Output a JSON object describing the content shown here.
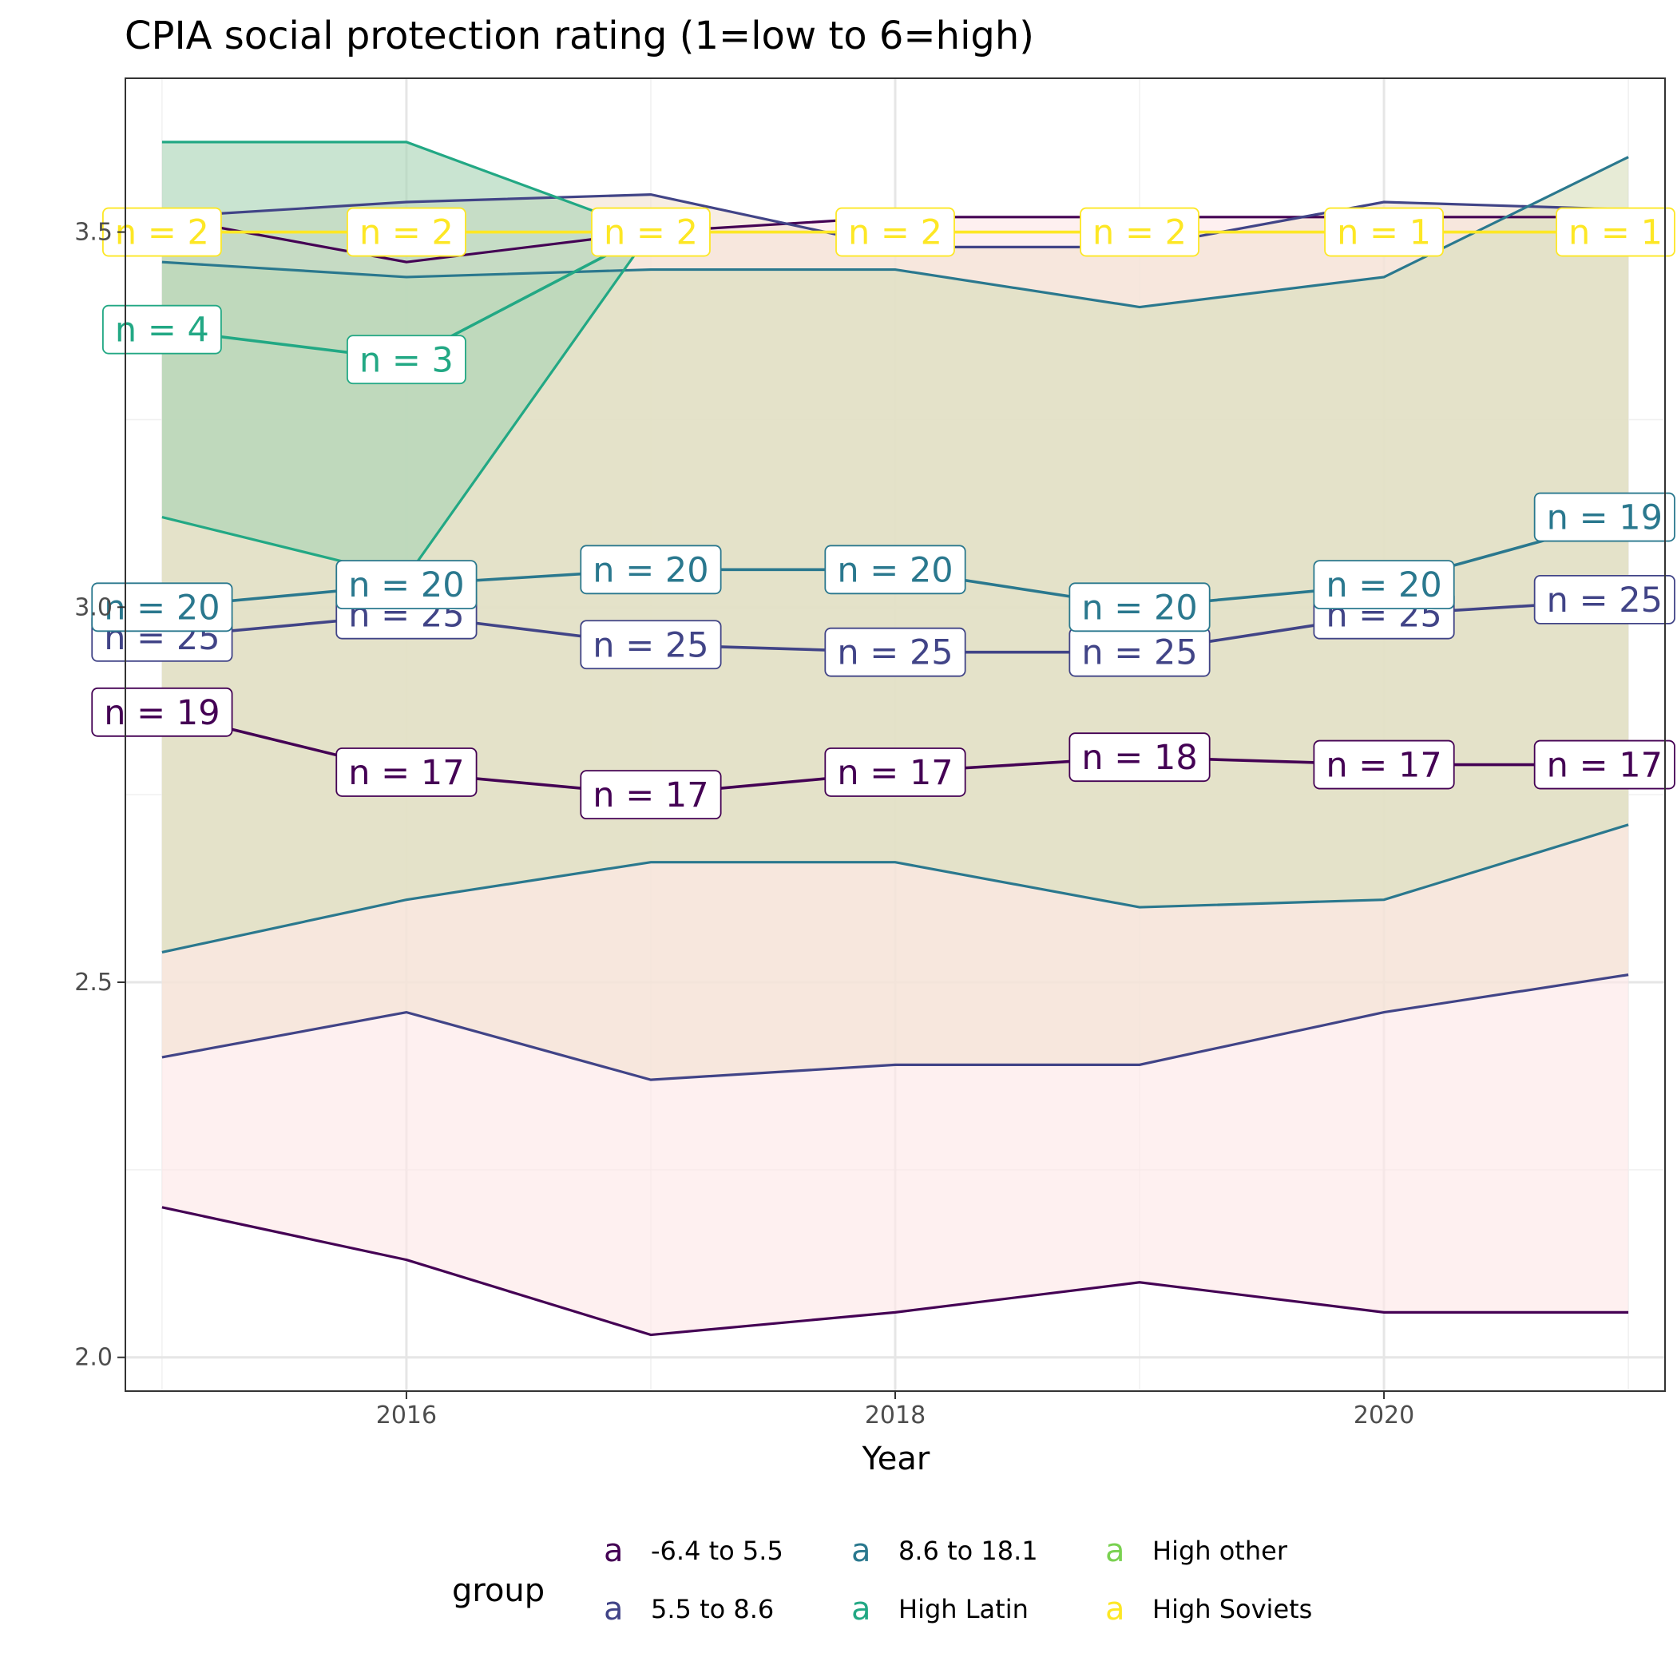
{
  "chart_data": {
    "type": "line",
    "title": "CPIA social protection rating (1=low to 6=high)",
    "xlabel": "Year",
    "ylabel": "",
    "x": [
      2015,
      2016,
      2017,
      2018,
      2019,
      2020,
      2021
    ],
    "xlim": [
      2014.85,
      2021.15
    ],
    "ylim": [
      1.955,
      3.705
    ],
    "x_ticks": [
      2016,
      2018,
      2020
    ],
    "x_tick_labels": [
      "2016",
      "2018",
      "2020"
    ],
    "y_ticks": [
      2.0,
      2.5,
      3.0,
      3.5
    ],
    "y_tick_labels": [
      "2.0",
      "2.5",
      "3.0",
      "3.5"
    ],
    "grid": true,
    "legend": {
      "title": "group",
      "position": "bottom",
      "key_glyph": "a",
      "entries": [
        {
          "name": "-6.4 to 5.5",
          "color": "#440154"
        },
        {
          "name": "5.5 to 8.6",
          "color": "#414487"
        },
        {
          "name": "8.6 to 18.1",
          "color": "#2A788E"
        },
        {
          "name": "High Latin",
          "color": "#22A884"
        },
        {
          "name": "High other",
          "color": "#7AD151"
        },
        {
          "name": "High Soviets",
          "color": "#FDE725"
        }
      ]
    },
    "series": [
      {
        "name": "-6.4 to 5.5",
        "color": "#440154",
        "band_fill": "#FDE7E7",
        "mean": [
          2.86,
          2.78,
          2.75,
          2.78,
          2.8,
          2.79,
          2.79
        ],
        "lower": [
          2.2,
          2.13,
          2.03,
          2.06,
          2.1,
          2.06,
          2.06
        ],
        "upper": [
          3.52,
          3.46,
          3.5,
          3.52,
          3.52,
          3.52,
          3.52
        ],
        "n_labels": [
          "n = 19",
          "n = 17",
          "n = 17",
          "n = 17",
          "n = 18",
          "n = 17",
          "n = 17"
        ]
      },
      {
        "name": "5.5 to 8.6",
        "color": "#414487",
        "band_fill": "#F2E2D2",
        "mean": [
          2.96,
          2.99,
          2.95,
          2.94,
          2.94,
          2.99,
          3.01
        ],
        "lower": [
          2.4,
          2.46,
          2.37,
          2.39,
          2.39,
          2.46,
          2.51
        ],
        "upper": [
          3.52,
          3.54,
          3.55,
          3.48,
          3.48,
          3.54,
          3.53
        ],
        "n_labels": [
          "n = 25",
          "n = 25",
          "n = 25",
          "n = 25",
          "n = 25",
          "n = 25",
          "n = 25"
        ]
      },
      {
        "name": "8.6 to 18.1",
        "color": "#2A788E",
        "band_fill": "#D8DFBD",
        "mean": [
          3.0,
          3.03,
          3.05,
          3.05,
          3.0,
          3.03,
          3.12
        ],
        "lower": [
          2.54,
          2.61,
          2.66,
          2.66,
          2.6,
          2.61,
          2.71
        ],
        "upper": [
          3.46,
          3.44,
          3.45,
          3.45,
          3.4,
          3.44,
          3.6
        ],
        "n_labels": [
          "n = 20",
          "n = 20",
          "n = 20",
          "n = 20",
          "n = 20",
          "n = 20",
          "n = 19"
        ]
      },
      {
        "name": "High Latin",
        "color": "#22A884",
        "band_fill": "#A8D4B4",
        "mean": [
          3.37,
          3.33,
          3.5
        ],
        "lower": [
          3.12,
          3.04,
          3.5
        ],
        "upper": [
          3.62,
          3.62,
          3.5
        ],
        "n_labels": [
          "n = 4",
          "n = 3",
          ""
        ]
      },
      {
        "name": "High Soviets",
        "color": "#FDE725",
        "band_fill": "#CDEFF2",
        "mean": [
          3.5,
          3.5,
          3.5,
          3.5,
          3.5,
          3.5,
          3.5
        ],
        "lower": [
          3.5,
          3.5,
          3.5,
          3.5,
          3.5,
          3.5,
          3.5
        ],
        "upper": [
          3.5,
          3.5,
          3.5,
          3.5,
          3.5,
          3.5,
          3.5
        ],
        "n_labels": [
          "n = 2",
          "n = 2",
          "n = 2",
          "n = 2",
          "n = 2",
          "n = 1",
          "n = 1"
        ]
      }
    ]
  }
}
